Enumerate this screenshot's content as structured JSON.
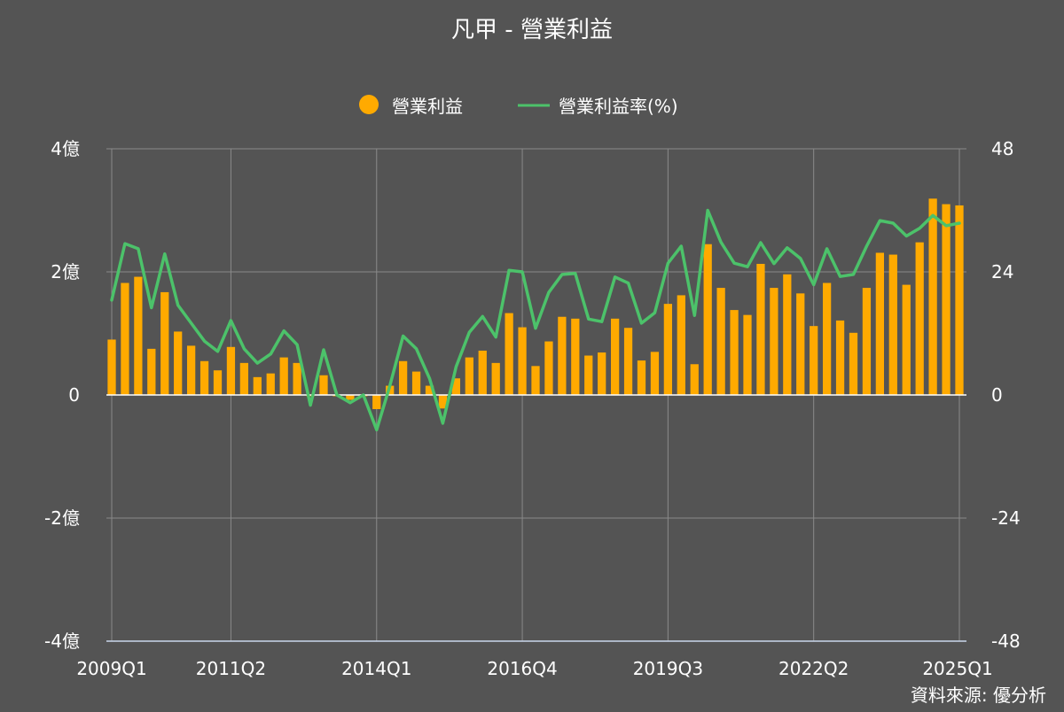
{
  "chart_data": {
    "type": "bar",
    "title": "凡甲 - 營業利益",
    "source": "資料來源: 優分析",
    "legend": {
      "placement": "top-center",
      "bar_label": "營業利益",
      "line_label": "營業利益率(%)"
    },
    "colors": {
      "background": "#545454",
      "bar": "#FFAA00",
      "line": "#4CC26A",
      "grid": "#8a8a8a",
      "zero_line": "#ffffff",
      "text": "#ffffff"
    },
    "left_axis": {
      "ylim": [
        -4,
        4
      ],
      "ticks": [
        {
          "value": 4,
          "label": "4億"
        },
        {
          "value": 2,
          "label": "2億"
        },
        {
          "value": 0,
          "label": "0"
        },
        {
          "value": -2,
          "label": "-2億"
        },
        {
          "value": -4,
          "label": "-4億"
        }
      ]
    },
    "right_axis": {
      "ylim": [
        -48,
        48
      ],
      "ticks": [
        {
          "value": 48,
          "label": "48"
        },
        {
          "value": 24,
          "label": "24"
        },
        {
          "value": 0,
          "label": "0"
        },
        {
          "value": -24,
          "label": "-24"
        },
        {
          "value": -48,
          "label": "-48"
        }
      ]
    },
    "x_tick_labels": [
      {
        "index": 0,
        "label": "2009Q1"
      },
      {
        "index": 9,
        "label": "2011Q2"
      },
      {
        "index": 20,
        "label": "2014Q1"
      },
      {
        "index": 31,
        "label": "2016Q4"
      },
      {
        "index": 42,
        "label": "2019Q3"
      },
      {
        "index": 53,
        "label": "2022Q2"
      },
      {
        "index": 64,
        "label": "2025Q1"
      }
    ],
    "categories": [
      "2009Q1",
      "2009Q2",
      "2009Q3",
      "2009Q4",
      "2010Q1",
      "2010Q2",
      "2010Q3",
      "2010Q4",
      "2011Q1",
      "2011Q2",
      "2011Q3",
      "2011Q4",
      "2012Q1",
      "2012Q2",
      "2012Q3",
      "2012Q4",
      "2013Q1",
      "2013Q2",
      "2013Q3",
      "2013Q4",
      "2014Q1",
      "2014Q2",
      "2014Q3",
      "2014Q4",
      "2015Q1",
      "2015Q2",
      "2015Q3",
      "2015Q4",
      "2016Q1",
      "2016Q2",
      "2016Q3",
      "2016Q4",
      "2017Q1",
      "2017Q2",
      "2017Q3",
      "2017Q4",
      "2018Q1",
      "2018Q2",
      "2018Q3",
      "2018Q4",
      "2019Q1",
      "2019Q2",
      "2019Q3",
      "2019Q4",
      "2020Q1",
      "2020Q2",
      "2020Q3",
      "2020Q4",
      "2021Q1",
      "2021Q2",
      "2021Q3",
      "2021Q4",
      "2022Q1",
      "2022Q2",
      "2022Q3",
      "2022Q4",
      "2023Q1",
      "2023Q2",
      "2023Q3",
      "2023Q4",
      "2024Q1",
      "2024Q2",
      "2024Q3",
      "2024Q4",
      "2025Q1"
    ],
    "series": [
      {
        "name": "營業利益",
        "type": "bar",
        "axis": "left",
        "values": [
          0.9,
          1.82,
          1.92,
          0.75,
          1.67,
          1.03,
          0.8,
          0.55,
          0.4,
          0.78,
          0.52,
          0.29,
          0.35,
          0.61,
          0.52,
          -0.02,
          0.32,
          -0.02,
          -0.08,
          -0.02,
          -0.23,
          0.15,
          0.55,
          0.38,
          0.15,
          -0.22,
          0.27,
          0.61,
          0.72,
          0.52,
          1.33,
          1.1,
          0.47,
          0.87,
          1.27,
          1.24,
          0.64,
          0.69,
          1.24,
          1.09,
          0.56,
          0.7,
          1.48,
          1.62,
          0.5,
          2.45,
          1.74,
          1.38,
          1.3,
          2.13,
          1.74,
          1.96,
          1.65,
          1.12,
          1.82,
          1.21,
          1.01,
          1.74,
          2.31,
          2.28,
          1.79,
          2.48,
          3.19,
          3.1,
          3.08
        ]
      },
      {
        "name": "營業利益率(%)",
        "type": "line",
        "axis": "right",
        "values": [
          18.5,
          29.5,
          28.5,
          17.0,
          27.5,
          17.5,
          14.0,
          10.5,
          8.5,
          14.5,
          9.0,
          6.2,
          8.0,
          12.5,
          9.8,
          -2.0,
          8.8,
          0.0,
          -1.5,
          0.0,
          -6.8,
          1.8,
          11.5,
          9.0,
          3.2,
          -5.5,
          5.5,
          12.2,
          15.3,
          11.3,
          24.3,
          24.0,
          13.0,
          20.0,
          23.5,
          23.7,
          14.8,
          14.3,
          23.0,
          21.8,
          14.0,
          16.0,
          25.7,
          29.0,
          15.5,
          36.0,
          29.8,
          25.7,
          25.0,
          29.7,
          25.6,
          28.7,
          26.6,
          21.5,
          28.5,
          23.1,
          23.5,
          29.0,
          34.0,
          33.5,
          31.0,
          32.5,
          35.0,
          33.0,
          33.5
        ]
      }
    ]
  }
}
